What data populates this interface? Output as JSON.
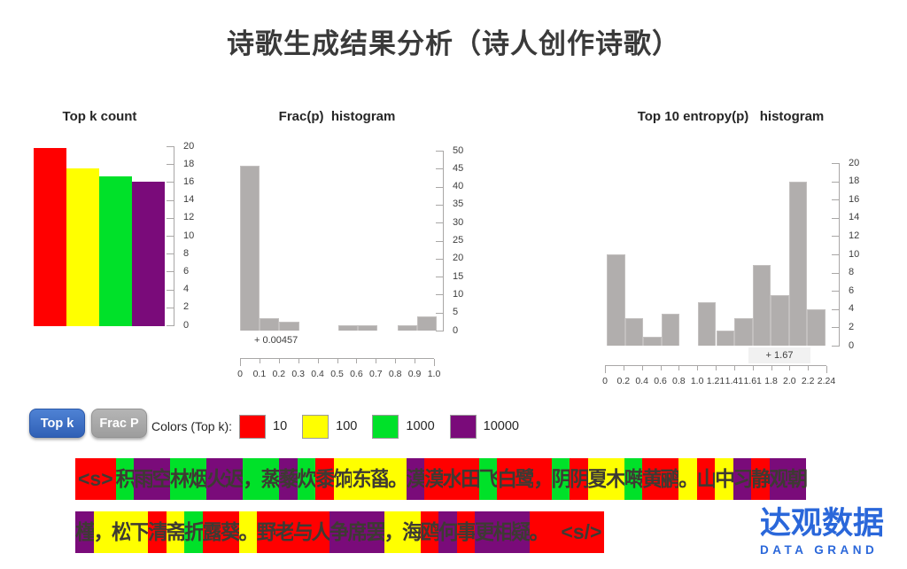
{
  "title": "诗歌生成结果分析（诗人创作诗歌）",
  "chart_data": [
    {
      "type": "bar",
      "title": "Top k count",
      "categories": [
        "10",
        "100",
        "1000",
        "10000"
      ],
      "values": [
        19.9,
        17.6,
        16.7,
        16.1
      ],
      "bar_colors": [
        "#FF0000",
        "#FFFF00",
        "#00E129",
        "#7A0B7A"
      ],
      "ylim": [
        0,
        20
      ],
      "ystep": 2,
      "yaxis_side": "right",
      "grid": false
    },
    {
      "type": "bar",
      "subtype": "histogram",
      "title": "Frac(p)  histogram",
      "x_tick_labels": [
        "0",
        "0.1",
        "0.2",
        "0.3",
        "0.4",
        "0.5",
        "0.6",
        "0.7",
        "0.8",
        "0.9",
        "1.0"
      ],
      "values": [
        45.8,
        3.5,
        2.5,
        0,
        0,
        1.5,
        1.5,
        0,
        1.5,
        4
      ],
      "bar_color": "#b1aead",
      "ylim": [
        0,
        50
      ],
      "ystep": 5,
      "yaxis_side": "right",
      "annotation": "+ 0.00457",
      "grid": false
    },
    {
      "type": "bar",
      "subtype": "histogram",
      "title": "Top 10 entropy(p)   histogram",
      "x_tick_labels": [
        "0",
        "0.2",
        "0.4",
        "0.6",
        "0.8",
        "1.0",
        "1.21",
        "1.41",
        "1.61",
        "1.8",
        "2.0",
        "2.2",
        "2.24"
      ],
      "values": [
        10,
        3,
        1,
        3.5,
        0,
        4.8,
        1.7,
        3,
        8.8,
        5.5,
        18,
        4
      ],
      "bar_color": "#b1aead",
      "ylim": [
        0,
        20
      ],
      "ystep": 2,
      "yaxis_side": "right",
      "annotation": "+ 1.67",
      "grid": false
    }
  ],
  "buttons": {
    "top_k": "Top k",
    "frac_p": "Frac P"
  },
  "legend": {
    "label": "Colors (Top k):",
    "items": [
      {
        "color": "#FF0000",
        "label": "10"
      },
      {
        "color": "#FFFF00",
        "label": "100"
      },
      {
        "color": "#00E129",
        "label": "1000"
      },
      {
        "color": "#7A0B7A",
        "label": "10000"
      }
    ]
  },
  "poem": {
    "palette": {
      "r": "#FF0000",
      "y": "#FFFF00",
      "g": "#00E129",
      "p": "#7A0B7A"
    },
    "line1": [
      [
        "<s>",
        "r"
      ],
      [
        "积",
        "g"
      ],
      [
        "雨",
        "p"
      ],
      [
        "空",
        "p"
      ],
      [
        "林",
        "g"
      ],
      [
        "烟",
        "g"
      ],
      [
        "火",
        "p"
      ],
      [
        "迟",
        "p"
      ],
      [
        "，",
        "g"
      ],
      [
        "蒸",
        "g"
      ],
      [
        "藜",
        "p"
      ],
      [
        "炊",
        "g"
      ],
      [
        "黍",
        "r"
      ],
      [
        "饷",
        "y"
      ],
      [
        "东",
        "y"
      ],
      [
        "菑",
        "y"
      ],
      [
        "。",
        "y"
      ],
      [
        "漠",
        "p"
      ],
      [
        "漠",
        "r"
      ],
      [
        "水",
        "r"
      ],
      [
        "田",
        "r"
      ],
      [
        "飞",
        "g"
      ],
      [
        "白",
        "r"
      ],
      [
        "鹭",
        "r"
      ],
      [
        "，",
        "r"
      ],
      [
        "阴",
        "g"
      ],
      [
        "阴",
        "r"
      ],
      [
        "夏",
        "y"
      ],
      [
        "木",
        "y"
      ],
      [
        "啭",
        "g"
      ],
      [
        "黄",
        "r"
      ],
      [
        "鹂",
        "r"
      ],
      [
        "。",
        "y"
      ],
      [
        "山",
        "r"
      ],
      [
        "中",
        "y"
      ],
      [
        "习",
        "p"
      ],
      [
        "静",
        "r"
      ],
      [
        "观",
        "p"
      ],
      [
        "朝",
        "p"
      ]
    ],
    "line2": [
      [
        "槿",
        "p"
      ],
      [
        "，",
        "y"
      ],
      [
        "松",
        "y"
      ],
      [
        "下",
        "y"
      ],
      [
        "清",
        "r"
      ],
      [
        "斋",
        "y"
      ],
      [
        "折",
        "g"
      ],
      [
        "露",
        "r"
      ],
      [
        "葵",
        "r"
      ],
      [
        "。",
        "y"
      ],
      [
        "野",
        "r"
      ],
      [
        "老",
        "r"
      ],
      [
        "与",
        "r"
      ],
      [
        "人",
        "r"
      ],
      [
        "争",
        "p"
      ],
      [
        "席",
        "p"
      ],
      [
        "罢",
        "p"
      ],
      [
        "，",
        "y"
      ],
      [
        "海",
        "y"
      ],
      [
        "鸥",
        "r"
      ],
      [
        "何",
        "p"
      ],
      [
        "事",
        "r"
      ],
      [
        "更",
        "p"
      ],
      [
        "相",
        "p"
      ],
      [
        "疑",
        "p"
      ],
      [
        "。",
        "r"
      ],
      [
        " ",
        "r"
      ],
      [
        "<s/>",
        "r"
      ]
    ]
  },
  "logo": {
    "cn": "达观数据",
    "en": "DATA GRAND"
  }
}
